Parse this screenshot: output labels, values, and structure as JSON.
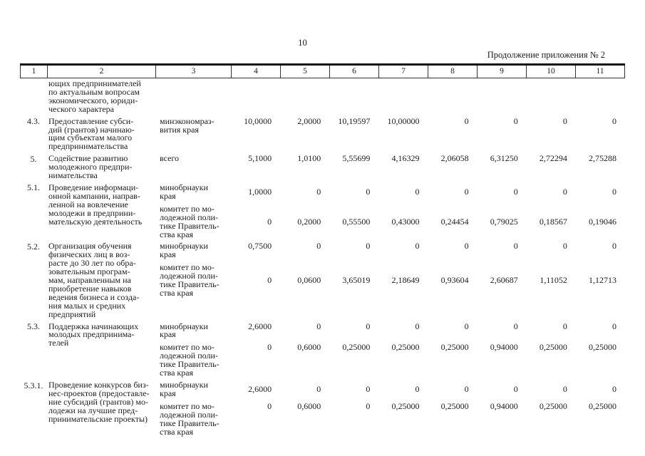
{
  "page": {
    "number": "10",
    "continuation_label": "Продолжение приложения № 2"
  },
  "table": {
    "column_numbers": [
      "1",
      "2",
      "3",
      "4",
      "5",
      "6",
      "7",
      "8",
      "9",
      "10",
      "11"
    ],
    "rows": [
      {
        "num": "",
        "name": "ющих предпринимателей\nпо актуальным вопросам\nэкономического, юриди-\nческого характера",
        "executors": []
      },
      {
        "num": "4.3.",
        "name": "Предоставление субси-\nдий (грантов) начинаю-\nщим субъектам малого\nпредпринимательства",
        "executors": [
          {
            "name": "минэкономраз-\nвития края",
            "valign": "top",
            "values": [
              "10,0000",
              "2,0000",
              "10,19597",
              "10,00000",
              "0",
              "0",
              "0",
              "0"
            ]
          }
        ]
      },
      {
        "num": "5.",
        "name": "Содействие развитию\nмолодежного предпри-\nнимательства",
        "executors": [
          {
            "name": "всего",
            "valign": "top",
            "values": [
              "5,1000",
              "1,0100",
              "5,55699",
              "4,16329",
              "2,06058",
              "6,31250",
              "2,72294",
              "2,75288"
            ]
          }
        ]
      },
      {
        "num": "5.1.",
        "name": "Проведение информаци-\nонной кампании, направ-\nленной на вовлечение\nмолодежи в предприни-\nмательскую деятельность",
        "executors": [
          {
            "name": "минобрнауки\nкрая",
            "valign": "middle",
            "values": [
              "1,0000",
              "0",
              "0",
              "0",
              "0",
              "0",
              "0",
              "0"
            ]
          },
          {
            "name": "комитет по мо-\nлодежной поли-\nтике Правитель-\nства края",
            "valign": "middle",
            "values": [
              "0",
              "0,2000",
              "0,55500",
              "0,43000",
              "0,24454",
              "0,79025",
              "0,18567",
              "0,19046"
            ]
          }
        ]
      },
      {
        "num": "5.2.",
        "name": "Организация обучения\nфизических лиц в воз-\nрасте до 30 лет по обра-\nзовательным програм-\nмам, направленным на\nприобретение навыков\nведения бизнеса и созда-\nния малых и средних\nпредприятий",
        "executors": [
          {
            "name": "минобрнауки\nкрая",
            "valign": "top",
            "values": [
              "0,7500",
              "0",
              "0",
              "0",
              "0",
              "0",
              "0",
              "0"
            ]
          },
          {
            "name": "комитет по мо-\nлодежной поли-\nтике Правитель-\nства края",
            "valign": "middle",
            "values": [
              "0",
              "0,0600",
              "3,65019",
              "2,18649",
              "0,93604",
              "2,60687",
              "1,11052",
              "1,12713"
            ]
          }
        ]
      },
      {
        "num": "5.3.",
        "name": "Поддержка начинающих\nмолодых предпринима-\nтелей",
        "executors": [
          {
            "name": "минобрнауки\nкрая",
            "valign": "top",
            "values": [
              "2,6000",
              "0",
              "0",
              "0",
              "0",
              "0",
              "0",
              "0"
            ]
          },
          {
            "name": "комитет по мо-\nлодежной поли-\nтике Правитель-\nства края",
            "valign": "top",
            "values": [
              "0",
              "0,6000",
              "0,25000",
              "0,25000",
              "0,25000",
              "0,94000",
              "0,25000",
              "0,25000"
            ]
          }
        ]
      },
      {
        "num": "5.3.1.",
        "name": "Проведение конкурсов биз-\nнес-проектов (предоставле-\nние субсидий (грантов) мо-\nлодежи на лучшие пред-\nпринимательские проекты)",
        "executors": [
          {
            "name": "минобрнауки\nкрая",
            "valign": "middle",
            "values": [
              "2,6000",
              "0",
              "0",
              "0",
              "0",
              "0",
              "0",
              "0"
            ]
          },
          {
            "name": "комитет по мо-\nлодежной поли-\nтике Правитель-\nства края",
            "valign": "top",
            "values": [
              "0",
              "0,6000",
              "0",
              "0,25000",
              "0,25000",
              "0,94000",
              "0,25000",
              "0,25000"
            ]
          }
        ]
      }
    ]
  }
}
